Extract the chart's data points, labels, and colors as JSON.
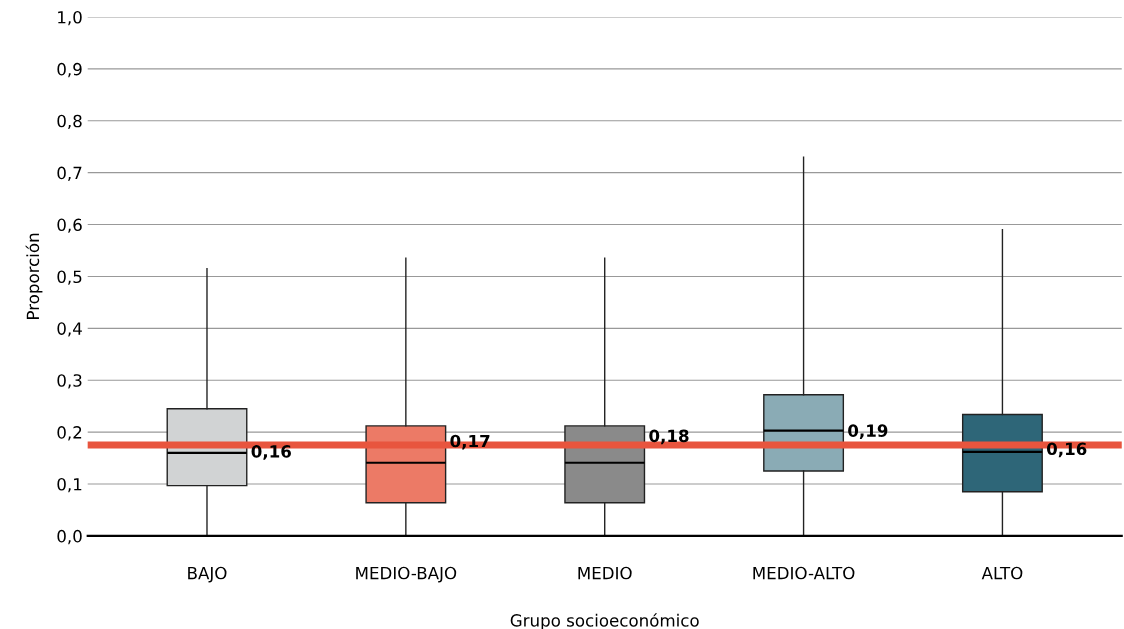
{
  "chart_data": {
    "type": "box",
    "xlabel": "Grupo socioeconómico",
    "ylabel": "Proporción",
    "categories": [
      "BAJO",
      "MEDIO-BAJO",
      "MEDIO",
      "MEDIO-ALTO",
      "ALTO"
    ],
    "colors": [
      "#d1d3d4",
      "#ec7a66",
      "#8a8a8a",
      "#8aabb5",
      "#2e6678"
    ],
    "boxes": [
      {
        "low": 0.0,
        "q1": 0.097,
        "median": 0.16,
        "q3": 0.245,
        "high": 0.515
      },
      {
        "low": 0.0,
        "q1": 0.064,
        "median": 0.141,
        "q3": 0.212,
        "high": 0.535
      },
      {
        "low": 0.0,
        "q1": 0.064,
        "median": 0.141,
        "q3": 0.212,
        "high": 0.535
      },
      {
        "low": 0.0,
        "q1": 0.125,
        "median": 0.203,
        "q3": 0.272,
        "high": 0.73
      },
      {
        "low": 0.0,
        "q1": 0.085,
        "median": 0.162,
        "q3": 0.234,
        "high": 0.59
      }
    ],
    "annotations": [
      {
        "text": "0,16",
        "x": "BAJO",
        "y": 0.16
      },
      {
        "text": "0,17",
        "x": "MEDIO-BAJO",
        "y": 0.18
      },
      {
        "text": "0,18",
        "x": "MEDIO",
        "y": 0.19
      },
      {
        "text": "0,19",
        "x": "MEDIO-ALTO",
        "y": 0.2
      },
      {
        "text": "0,16",
        "x": "ALTO",
        "y": 0.165
      }
    ],
    "ref_lines": [
      {
        "axis": "y",
        "value": 0.175,
        "color": "#e8553e"
      }
    ],
    "ylim": [
      0,
      1.0
    ],
    "yticks": [
      {
        "value": 0,
        "label": "0,0"
      },
      {
        "value": 0.1,
        "label": "0,1"
      },
      {
        "value": 0.2,
        "label": "0,2"
      },
      {
        "value": 0.3,
        "label": "0,3"
      },
      {
        "value": 0.4,
        "label": "0,4"
      },
      {
        "value": 0.5,
        "label": "0,5"
      },
      {
        "value": 0.6,
        "label": "0,6"
      },
      {
        "value": 0.7,
        "label": "0,7"
      },
      {
        "value": 0.8,
        "label": "0,8"
      },
      {
        "value": 0.9,
        "label": "0,9"
      },
      {
        "value": 1.0,
        "label": "1,0"
      }
    ],
    "grid": "y"
  }
}
